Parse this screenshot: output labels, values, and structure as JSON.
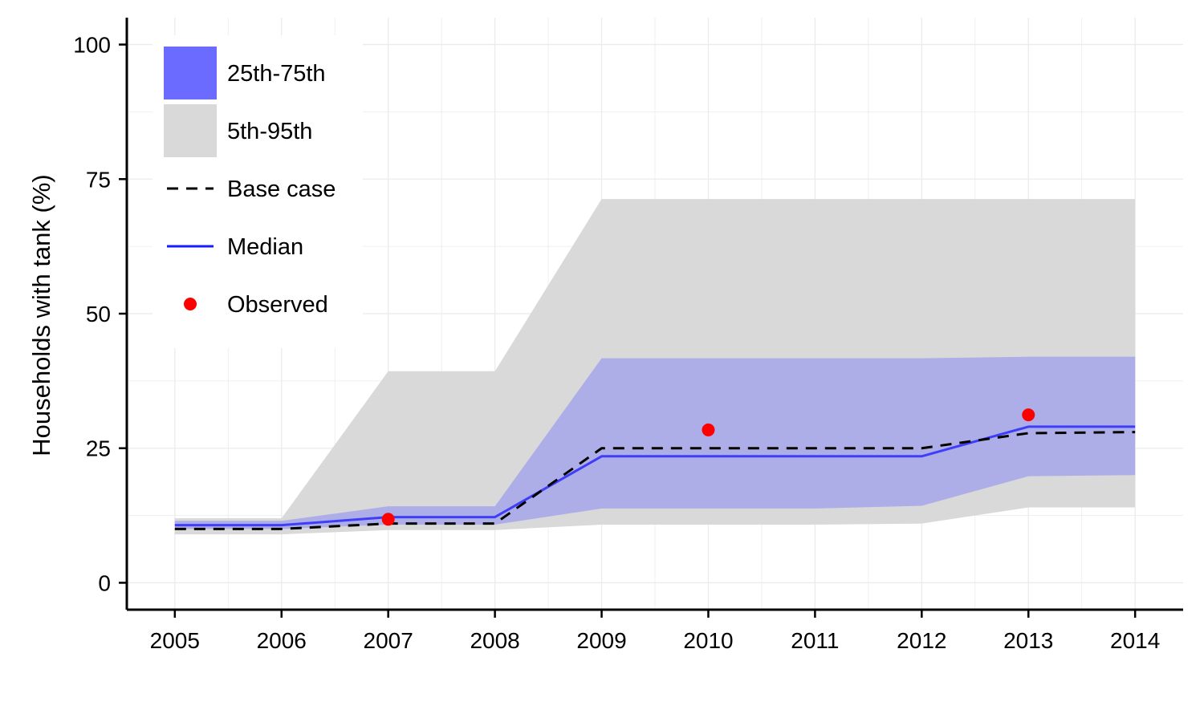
{
  "chart_data": {
    "type": "area",
    "title": "",
    "xlabel": "",
    "ylabel": "Households with tank (%)",
    "x": [
      2005,
      2006,
      2007,
      2008,
      2009,
      2010,
      2011,
      2012,
      2013,
      2014
    ],
    "xlim": [
      2004.55,
      2014.45
    ],
    "ylim": [
      -5,
      105
    ],
    "yticks": [
      0,
      25,
      50,
      75,
      100
    ],
    "ytick_labels": [
      "0",
      "25",
      "50",
      "75",
      "100"
    ],
    "xtick_labels": [
      "2005",
      "2006",
      "2007",
      "2008",
      "2009",
      "2010",
      "2011",
      "2012",
      "2013",
      "2014"
    ],
    "grid": true,
    "legend_position": "top-left",
    "colors": {
      "band_5_95": "#d9d9d9",
      "band_25_75": "#6b6bff",
      "median": "#1a1aff",
      "base_case": "#000000",
      "observed": "#ff0000",
      "grid": "#ebebeb"
    },
    "bands": [
      {
        "name": "5th-95th",
        "lower": [
          9.0,
          9.0,
          9.8,
          9.8,
          10.8,
          10.8,
          10.8,
          11.0,
          14.0,
          14.0
        ],
        "upper": [
          12.0,
          12.0,
          39.3,
          39.3,
          71.3,
          71.3,
          71.3,
          71.3,
          71.3,
          71.3
        ]
      },
      {
        "name": "25th-75th",
        "lower": [
          10.0,
          10.0,
          10.8,
          10.8,
          13.8,
          13.8,
          13.8,
          14.3,
          19.8,
          20.0
        ],
        "upper": [
          11.5,
          11.5,
          14.2,
          14.2,
          41.7,
          41.7,
          41.7,
          41.7,
          42.0,
          42.0
        ]
      }
    ],
    "series": [
      {
        "name": "Base case",
        "values": [
          10.0,
          10.0,
          11.0,
          11.0,
          25.0,
          25.0,
          25.0,
          25.0,
          27.8,
          28.0
        ]
      },
      {
        "name": "Median",
        "values": [
          10.7,
          10.7,
          12.2,
          12.2,
          23.5,
          23.5,
          23.5,
          23.5,
          29.0,
          29.0
        ]
      }
    ],
    "observed": {
      "name": "Observed",
      "points": [
        {
          "x": 2007,
          "y": 11.8
        },
        {
          "x": 2010,
          "y": 28.4
        },
        {
          "x": 2013,
          "y": 31.2
        }
      ]
    },
    "legend": [
      "25th-75th",
      "5th-95th",
      "Base case",
      "Median",
      "Observed"
    ]
  }
}
